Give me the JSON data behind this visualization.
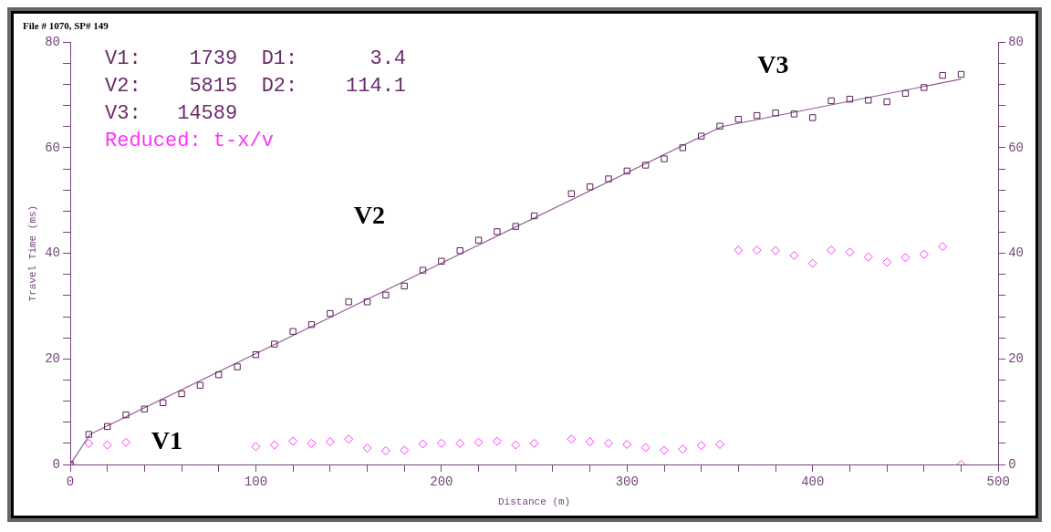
{
  "chart_data": {
    "type": "scatter",
    "title": "File # 1070, SP# 149",
    "xlabel": "Distance (m)",
    "ylabel": "Travel Time (ms)",
    "annotations": [
      "V1:    1739  D1:      3.4",
      "V2:    5815  D2:    114.1",
      "V3:   14589",
      "V1",
      "V2",
      "V3"
    ],
    "x": [
      0,
      10,
      20,
      30,
      40,
      50,
      60,
      70,
      80,
      90,
      100,
      110,
      120,
      130,
      140,
      150,
      160,
      170,
      180,
      190,
      200,
      210,
      220,
      230,
      240,
      250,
      260,
      270,
      280,
      290,
      300,
      310,
      320,
      330,
      340,
      350,
      360,
      370,
      380,
      390,
      400,
      410,
      420,
      430,
      440,
      450,
      460,
      470,
      480
    ],
    "series": [
      {
        "marker": "square",
        "color": "#5a1f5a",
        "values": [
          0,
          5.7,
          7.2,
          9.4,
          10.5,
          11.7,
          13.4,
          15.0,
          17.0,
          18.5,
          20.8,
          22.8,
          25.2,
          26.5,
          28.6,
          30.8,
          30.8,
          32.1,
          33.8,
          36.8,
          38.5,
          40.5,
          42.5,
          44.1,
          45.1,
          47.1,
          null,
          51.3,
          52.6,
          54.1,
          55.6,
          56.7,
          57.9,
          60.0,
          62.2,
          64.1,
          65.4,
          66.1,
          66.6,
          66.4,
          65.7,
          68.9,
          69.2,
          69.0,
          68.7,
          70.3,
          71.4,
          73.7,
          73.9
        ]
      },
      {
        "type": "line",
        "marker": "none",
        "line_style": "solid",
        "color": "#8f5a8f",
        "x": [
          0,
          10.6,
          351,
          480
        ],
        "values": [
          0,
          5.7,
          64.0,
          73.0
        ]
      },
      {
        "marker": "diamond",
        "name": "Reduced: t-x/v",
        "color": "#ff33ff",
        "values": [
          0,
          4.0,
          3.7,
          4.2,
          null,
          null,
          null,
          null,
          null,
          null,
          3.4,
          3.7,
          4.4,
          4.0,
          4.3,
          4.8,
          3.1,
          2.6,
          2.7,
          3.9,
          4.0,
          4.0,
          4.2,
          4.4,
          3.7,
          4.0,
          null,
          4.8,
          4.3,
          4.0,
          3.8,
          3.2,
          2.7,
          2.9,
          3.6,
          3.8,
          40.6,
          40.6,
          40.5,
          39.6,
          38.1,
          40.6,
          40.2,
          39.3,
          38.3,
          39.2,
          39.8,
          41.3,
          0
        ]
      }
    ],
    "xlim": [
      0,
      500
    ],
    "xticks": [
      0,
      {
        "value": 20,
        "label": null
      },
      {
        "value": 40,
        "label": null
      },
      {
        "value": 60,
        "label": null
      },
      {
        "value": 80,
        "label": null
      },
      100,
      {
        "value": 120,
        "label": null
      },
      {
        "value": 140,
        "label": null
      },
      {
        "value": 160,
        "label": null
      },
      {
        "value": 180,
        "label": null
      },
      200,
      {
        "value": 220,
        "label": null
      },
      {
        "value": 240,
        "label": null
      },
      {
        "value": 260,
        "label": null
      },
      {
        "value": 280,
        "label": null
      },
      300,
      {
        "value": 320,
        "label": null
      },
      {
        "value": 340,
        "label": null
      },
      {
        "value": 360,
        "label": null
      },
      {
        "value": 380,
        "label": null
      },
      400,
      {
        "value": 420,
        "label": null
      },
      {
        "value": 440,
        "label": null
      },
      {
        "value": 460,
        "label": null
      },
      {
        "value": 480,
        "label": null
      },
      500
    ],
    "ylim": [
      0,
      80
    ],
    "yticks": [
      0,
      {
        "value": 4,
        "label": null
      },
      {
        "value": 8,
        "label": null
      },
      {
        "value": 12,
        "label": null
      },
      {
        "value": 16,
        "label": null
      },
      20,
      {
        "value": 24,
        "label": null
      },
      {
        "value": 28,
        "label": null
      },
      {
        "value": 32,
        "label": null
      },
      {
        "value": 36,
        "label": null
      },
      40,
      {
        "value": 44,
        "label": null
      },
      {
        "value": 48,
        "label": null
      },
      {
        "value": 52,
        "label": null
      },
      {
        "value": 56,
        "label": null
      },
      60,
      {
        "value": 64,
        "label": null
      },
      {
        "value": 68,
        "label": null
      },
      {
        "value": 72,
        "label": null
      },
      {
        "value": 76,
        "label": null
      },
      80
    ],
    "y2lim": [
      0,
      80
    ],
    "y2ticks": [
      0,
      {
        "value": 4,
        "label": null
      },
      {
        "value": 8,
        "label": null
      },
      {
        "value": 12,
        "label": null
      },
      {
        "value": 16,
        "label": null
      },
      20,
      {
        "value": 24,
        "label": null
      },
      {
        "value": 28,
        "label": null
      },
      {
        "value": 32,
        "label": null
      },
      {
        "value": 36,
        "label": null
      },
      40,
      {
        "value": 44,
        "label": null
      },
      {
        "value": 48,
        "label": null
      },
      {
        "value": 52,
        "label": null
      },
      {
        "value": 56,
        "label": null
      },
      60,
      {
        "value": 64,
        "label": null
      },
      {
        "value": 68,
        "label": null
      },
      {
        "value": 72,
        "label": null
      },
      {
        "value": 76,
        "label": null
      },
      80
    ],
    "grid": false
  }
}
